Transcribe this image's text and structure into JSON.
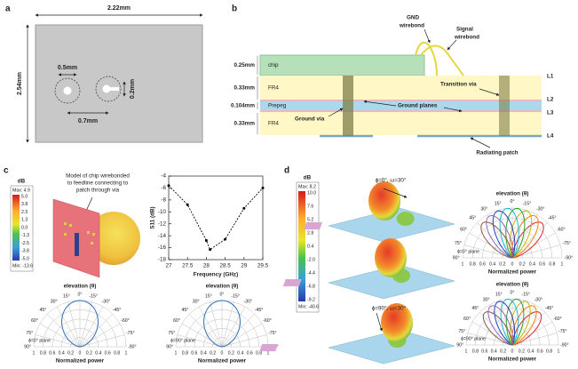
{
  "panel_a": {
    "label": "a",
    "width": "2.22mm",
    "height": "2.54mm",
    "via_diameter": "0.5mm",
    "via_spacing": "0.7mm",
    "gap": "0.2mm"
  },
  "panel_b": {
    "label": "b",
    "layers": [
      {
        "thickness": "0.25mm",
        "name": "chip"
      },
      {
        "thickness": "0.33mm",
        "name": "FR4"
      },
      {
        "thickness": "0.104mm",
        "name": "Prepeg"
      },
      {
        "thickness": "0.33mm",
        "name": "FR4"
      }
    ],
    "levels": [
      "L1",
      "L2",
      "L3",
      "L4"
    ],
    "annotations": {
      "gnd_wirebond": [
        "GND",
        "wirebond"
      ],
      "signal_wirebond": [
        "Signal",
        "wirebond"
      ],
      "transition_via": "Transition via",
      "ground_planes": "Ground planes",
      "ground_via": "Ground via",
      "radiating_patch": "Radiating patch"
    }
  },
  "panel_c": {
    "label": "c",
    "colorbar": {
      "unit": "dB",
      "max": "Max: 4.9",
      "ticks": [
        "5.0",
        "3.8",
        "2.5",
        "1.3",
        "0.0",
        "-1.3",
        "-2.5",
        "-3.8",
        "-5.0"
      ],
      "min": "Min: -13.6"
    },
    "caption": [
      "Model of chip wirebonded",
      "to feedline connecting to",
      "patch through via"
    ],
    "s11": {
      "type": "line",
      "xlabel": "Frequency (GHz)",
      "ylabel": "S11 (dB)",
      "x": [
        27,
        27.5,
        28,
        28.1,
        28.5,
        29,
        29.5
      ],
      "values": [
        -5.6,
        -8.8,
        -14.8,
        -16.3,
        -14.6,
        -9.4,
        -6.0
      ],
      "xlim": [
        27,
        29.5
      ],
      "ylim": [
        -18,
        -4
      ],
      "xticks": [
        27,
        27.5,
        28,
        28.5,
        29,
        29.5
      ],
      "yticks": [
        -4,
        -6,
        -8,
        -10,
        -12,
        -14,
        -16,
        -18
      ],
      "color": "#000000"
    },
    "polar": [
      {
        "title": "elevation (θ)",
        "plane": "ϕ=0° plane",
        "xlabel": "Normalized power"
      },
      {
        "title": "elevation (θ)",
        "plane": "ϕ=90° plane",
        "xlabel": "Normalized power"
      }
    ]
  },
  "panel_d": {
    "label": "d",
    "colorbar": {
      "unit": "dB",
      "max": "Max: 8.2",
      "ticks": [
        "10.0",
        "7.6",
        "5.2",
        "2.8",
        "0.4",
        "-2.0",
        "-4.4",
        "-6.8",
        "-9.2"
      ],
      "min": "Min: -40.6"
    },
    "views": [
      "ϕ=0°, ω=30°",
      "ϕ=90°, ω=30°"
    ],
    "polar": [
      {
        "title": "elevation (θ)",
        "plane": "ϕ=0° plane",
        "xlabel": "Normalized power"
      },
      {
        "title": "elevation (θ)",
        "plane": "ϕ=90° plane",
        "xlabel": "Normalized power"
      }
    ]
  },
  "polar_axes": {
    "angles": [
      {
        "value": 0,
        "label": "0°"
      },
      {
        "value": 15,
        "label": "15°"
      },
      {
        "value": 30,
        "label": "30°"
      },
      {
        "value": 45,
        "label": "45°"
      },
      {
        "value": 60,
        "label": "60°"
      },
      {
        "value": 75,
        "label": "75°"
      },
      {
        "value": 90,
        "label": "90°"
      },
      {
        "value": -15,
        "label": "-15°"
      },
      {
        "value": -30,
        "label": "-30°"
      },
      {
        "value": -45,
        "label": "-45°"
      },
      {
        "value": -60,
        "label": "-60°"
      },
      {
        "value": -75,
        "label": "-75°"
      },
      {
        "value": -90,
        "label": "-90°"
      }
    ],
    "radial_ticks": [
      0,
      0.2,
      0.4,
      0.6,
      0.8,
      1
    ]
  }
}
